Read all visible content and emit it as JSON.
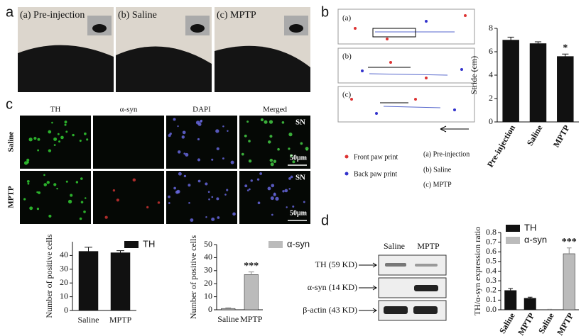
{
  "panels": {
    "a": {
      "label": "a",
      "photos": [
        "(a) Pre-injection",
        "(b) Saline",
        "(c) MPTP"
      ]
    },
    "b": {
      "label": "b",
      "tracks": [
        "(a)",
        "(b)",
        "(c)"
      ],
      "legend": [
        "Front paw print",
        "Back paw print"
      ],
      "key": [
        "(a) Pre-injection",
        "(b) Saline",
        "(c) MPTP"
      ]
    },
    "c": {
      "label": "c",
      "columns": [
        "TH",
        "α-syn",
        "DAPI",
        "Merged"
      ],
      "rows": [
        "Saline",
        "MPTP"
      ],
      "region": "SN",
      "scale": "50μm"
    },
    "d": {
      "label": "d",
      "lanes": [
        "Saline",
        "MPTP"
      ],
      "bands": [
        "TH (59 KD)",
        "α-syn (14 KD)",
        "β-actin (43 KD)"
      ]
    }
  },
  "chart_data": [
    {
      "type": "bar",
      "ylabel": "Stride (cm)",
      "categories": [
        "Pre-injection",
        "Saline",
        "MPTP"
      ],
      "values": [
        7.0,
        6.7,
        5.6
      ],
      "errors": [
        0.25,
        0.15,
        0.2
      ],
      "color": "#111111",
      "ylim": [
        0,
        8
      ],
      "yticks": [
        0,
        2,
        4,
        6,
        8
      ],
      "annotations": [
        {
          "text": "*",
          "category": "MPTP"
        }
      ]
    },
    {
      "type": "bar",
      "ylabel": "Number of positive cells",
      "categories": [
        "Saline",
        "MPTP"
      ],
      "series": [
        {
          "name": "TH",
          "color": "#111111",
          "values": [
            43,
            42
          ],
          "errors": [
            3,
            1.5
          ]
        }
      ],
      "ylim": [
        0,
        50
      ],
      "yticks": [
        0,
        10,
        20,
        30,
        40
      ]
    },
    {
      "type": "bar",
      "ylabel": "Number of positive cells",
      "categories": [
        "Saline",
        "MPTP"
      ],
      "series": [
        {
          "name": "α-syn",
          "color": "#bbbbbb",
          "values": [
            1,
            27
          ],
          "errors": [
            0.5,
            2
          ]
        }
      ],
      "ylim": [
        0,
        50
      ],
      "yticks": [
        0,
        10,
        20,
        30,
        40,
        50
      ],
      "annotations": [
        {
          "text": "***",
          "category": "MPTP",
          "series": "α-syn"
        }
      ]
    },
    {
      "type": "bar",
      "ylabel": "TH/α-syn expression ratio",
      "categories": [
        "Saline",
        "MPTP",
        "Saline",
        "MPTP"
      ],
      "series": [
        {
          "name": "TH",
          "color": "#111111",
          "values": [
            0.2,
            0.12,
            null,
            null
          ],
          "errors": [
            0.02,
            0.01,
            null,
            null
          ]
        },
        {
          "name": "α-syn",
          "color": "#bbbbbb",
          "values": [
            null,
            null,
            0,
            0.58
          ],
          "errors": [
            null,
            null,
            0.005,
            0.06
          ]
        }
      ],
      "ylim": [
        0,
        0.8
      ],
      "yticks": [
        {
          "value": 0,
          "label": "0.0"
        },
        0.1,
        0.2,
        0.3,
        0.4,
        0.5,
        0.6,
        0.7,
        0.8
      ],
      "annotations": [
        {
          "text": "***",
          "category": "MPTP",
          "series": "α-syn"
        }
      ]
    }
  ]
}
